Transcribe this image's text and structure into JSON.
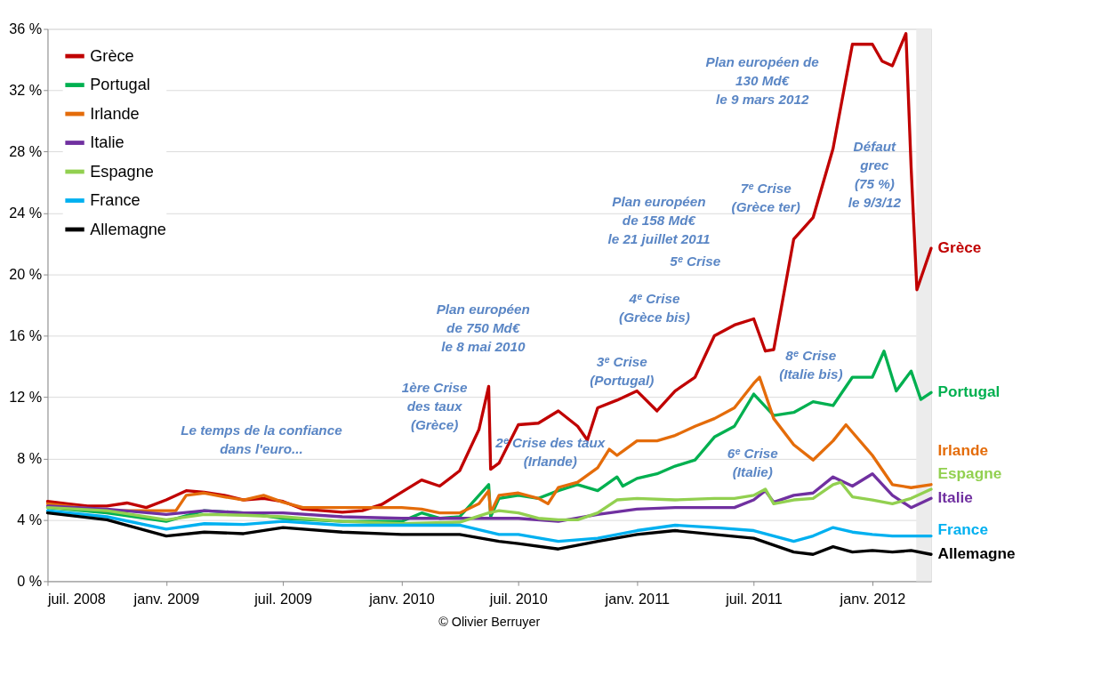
{
  "chart_data": {
    "type": "line",
    "xlim": [
      "2008-07-01",
      "2012-04-01"
    ],
    "ylim": [
      0,
      36
    ],
    "xticks": [
      {
        "value": "2008-07-01",
        "label": "juil. 2008"
      },
      {
        "value": "2009-01-01",
        "label": "janv. 2009"
      },
      {
        "value": "2009-07-01",
        "label": "juil. 2009"
      },
      {
        "value": "2010-01-01",
        "label": "janv. 2010"
      },
      {
        "value": "2010-07-01",
        "label": "juil. 2010"
      },
      {
        "value": "2011-01-01",
        "label": "janv. 2011"
      },
      {
        "value": "2011-07-01",
        "label": "juil. 2011"
      },
      {
        "value": "2012-01-01",
        "label": "janv. 2012"
      }
    ],
    "yticks": [
      {
        "value": 0,
        "label": "0 %"
      },
      {
        "value": 4,
        "label": "4 %"
      },
      {
        "value": 8,
        "label": "8 %"
      },
      {
        "value": 12,
        "label": "12 %"
      },
      {
        "value": 16,
        "label": "16 %"
      },
      {
        "value": 20,
        "label": "20 %"
      },
      {
        "value": 24,
        "label": "24 %"
      },
      {
        "value": 28,
        "label": "28 %"
      },
      {
        "value": 32,
        "label": "32 %"
      },
      {
        "value": 36,
        "label": "36 %"
      }
    ],
    "grid": "y",
    "legend": "top left",
    "line_style": "solid",
    "marker": "none",
    "series": [
      {
        "name": "Grèce",
        "color": "#c00000",
        "x": [
          "2008-07-01",
          "2008-08-01",
          "2008-09-01",
          "2008-10-01",
          "2008-11-01",
          "2008-12-01",
          "2009-01-01",
          "2009-02-01",
          "2009-03-01",
          "2009-04-01",
          "2009-05-01",
          "2009-06-01",
          "2009-07-01",
          "2009-08-01",
          "2009-09-01",
          "2009-10-01",
          "2009-11-01",
          "2009-12-01",
          "2010-01-01",
          "2010-02-01",
          "2010-03-01",
          "2010-04-01",
          "2010-05-01",
          "2010-05-16",
          "2010-05-19",
          "2010-06-01",
          "2010-07-01",
          "2010-08-01",
          "2010-09-01",
          "2010-10-01",
          "2010-10-16",
          "2010-11-01",
          "2010-12-01",
          "2011-01-01",
          "2011-02-01",
          "2011-03-01",
          "2011-04-01",
          "2011-05-01",
          "2011-06-01",
          "2011-07-01",
          "2011-07-19",
          "2011-08-01",
          "2011-09-01",
          "2011-10-01",
          "2011-11-01",
          "2011-12-01",
          "2012-01-01",
          "2012-01-16",
          "2012-02-01",
          "2012-02-22",
          "2012-03-01",
          "2012-03-10",
          "2012-04-01"
        ],
        "values": [
          5.2,
          5.05,
          4.9,
          4.9,
          5.1,
          4.8,
          5.3,
          5.9,
          5.8,
          5.6,
          5.3,
          5.4,
          5.2,
          4.7,
          4.6,
          4.5,
          4.6,
          5.0,
          5.8,
          6.6,
          6.2,
          7.2,
          9.9,
          12.7,
          7.3,
          7.7,
          10.2,
          10.3,
          11.1,
          10.1,
          9.2,
          11.3,
          11.8,
          12.4,
          11.1,
          12.4,
          13.3,
          16.0,
          16.7,
          17.1,
          15.0,
          15.1,
          22.3,
          23.7,
          28.2,
          35.0,
          35.0,
          33.9,
          33.6,
          35.7,
          27.0,
          19.0,
          21.7
        ]
      },
      {
        "name": "Portugal",
        "color": "#00b050",
        "x": [
          "2008-07-01",
          "2008-10-01",
          "2009-01-01",
          "2009-03-01",
          "2009-05-01",
          "2009-07-01",
          "2009-10-01",
          "2010-01-01",
          "2010-02-01",
          "2010-03-01",
          "2010-04-01",
          "2010-05-01",
          "2010-05-16",
          "2010-05-19",
          "2010-06-01",
          "2010-07-01",
          "2010-08-01",
          "2010-09-01",
          "2010-10-01",
          "2010-11-01",
          "2010-12-01",
          "2010-12-10",
          "2011-01-01",
          "2011-02-01",
          "2011-03-01",
          "2011-04-01",
          "2011-05-01",
          "2011-06-01",
          "2011-07-01",
          "2011-08-01",
          "2011-09-01",
          "2011-10-01",
          "2011-11-01",
          "2011-12-01",
          "2012-01-01",
          "2012-01-19",
          "2012-02-07",
          "2012-03-01",
          "2012-03-16",
          "2012-04-01"
        ],
        "values": [
          4.8,
          4.45,
          3.9,
          4.6,
          4.45,
          4.1,
          3.9,
          3.9,
          4.45,
          4.1,
          4.2,
          5.6,
          6.3,
          4.2,
          5.4,
          5.6,
          5.4,
          5.9,
          6.3,
          5.9,
          6.8,
          6.2,
          6.7,
          7.0,
          7.5,
          7.9,
          9.4,
          10.1,
          12.2,
          10.8,
          11.0,
          11.7,
          11.45,
          13.3,
          13.3,
          15.0,
          12.4,
          13.7,
          11.85,
          12.3
        ]
      },
      {
        "name": "Irlande",
        "color": "#e46c0a",
        "x": [
          "2008-07-01",
          "2008-10-01",
          "2009-01-01",
          "2009-01-16",
          "2009-02-01",
          "2009-03-01",
          "2009-04-01",
          "2009-05-01",
          "2009-06-01",
          "2009-07-01",
          "2009-08-01",
          "2009-10-01",
          "2009-12-01",
          "2010-01-01",
          "2010-02-01",
          "2010-03-01",
          "2010-04-01",
          "2010-05-01",
          "2010-05-16",
          "2010-05-19",
          "2010-06-01",
          "2010-07-01",
          "2010-08-01",
          "2010-08-16",
          "2010-09-01",
          "2010-10-01",
          "2010-11-01",
          "2010-11-19",
          "2010-12-01",
          "2011-01-01",
          "2011-02-01",
          "2011-03-01",
          "2011-04-01",
          "2011-05-01",
          "2011-06-01",
          "2011-07-01",
          "2011-07-10",
          "2011-08-01",
          "2011-09-01",
          "2011-10-01",
          "2011-11-01",
          "2011-11-21",
          "2012-01-01",
          "2012-02-01",
          "2012-03-01",
          "2012-04-01"
        ],
        "values": [
          5.05,
          4.6,
          4.6,
          4.6,
          5.6,
          5.75,
          5.5,
          5.3,
          5.6,
          5.15,
          4.8,
          4.8,
          4.8,
          4.8,
          4.7,
          4.45,
          4.45,
          5.05,
          5.9,
          4.45,
          5.6,
          5.75,
          5.4,
          5.05,
          6.1,
          6.45,
          7.4,
          8.6,
          8.2,
          9.15,
          9.15,
          9.5,
          10.1,
          10.6,
          11.3,
          12.9,
          13.3,
          10.6,
          8.9,
          7.9,
          9.15,
          10.2,
          8.2,
          6.3,
          6.1,
          6.3
        ]
      },
      {
        "name": "Italie",
        "color": "#7030a0",
        "x": [
          "2008-07-01",
          "2008-10-01",
          "2009-01-01",
          "2009-03-01",
          "2009-05-01",
          "2009-07-01",
          "2009-10-01",
          "2010-01-01",
          "2010-04-01",
          "2010-06-01",
          "2010-07-01",
          "2010-09-01",
          "2010-11-01",
          "2011-01-01",
          "2011-03-01",
          "2011-05-01",
          "2011-06-01",
          "2011-07-01",
          "2011-07-19",
          "2011-08-01",
          "2011-09-01",
          "2011-10-01",
          "2011-11-01",
          "2011-12-01",
          "2012-01-01",
          "2012-02-01",
          "2012-03-01",
          "2012-04-01"
        ],
        "values": [
          4.9,
          4.7,
          4.35,
          4.6,
          4.45,
          4.45,
          4.2,
          4.1,
          4.1,
          4.1,
          4.1,
          3.9,
          4.35,
          4.7,
          4.8,
          4.8,
          4.8,
          5.3,
          5.9,
          5.15,
          5.6,
          5.75,
          6.8,
          6.2,
          7.0,
          5.6,
          4.8,
          5.4
        ]
      },
      {
        "name": "Espagne",
        "color": "#92d050",
        "x": [
          "2008-07-01",
          "2008-10-01",
          "2009-01-01",
          "2009-03-01",
          "2009-05-01",
          "2009-07-01",
          "2009-10-01",
          "2010-01-01",
          "2010-04-01",
          "2010-05-16",
          "2010-06-01",
          "2010-07-01",
          "2010-08-01",
          "2010-09-01",
          "2010-10-01",
          "2010-11-01",
          "2010-12-01",
          "2011-01-01",
          "2011-03-01",
          "2011-05-01",
          "2011-06-01",
          "2011-07-01",
          "2011-07-19",
          "2011-08-01",
          "2011-09-01",
          "2011-10-01",
          "2011-11-01",
          "2011-11-13",
          "2011-12-01",
          "2012-01-01",
          "2012-02-01",
          "2012-03-01",
          "2012-04-01"
        ],
        "values": [
          4.8,
          4.6,
          4.0,
          4.35,
          4.3,
          4.2,
          3.9,
          3.75,
          3.85,
          4.45,
          4.6,
          4.45,
          4.1,
          4.0,
          4.0,
          4.45,
          5.3,
          5.4,
          5.3,
          5.4,
          5.4,
          5.6,
          6.0,
          5.05,
          5.3,
          5.4,
          6.3,
          6.45,
          5.5,
          5.3,
          5.05,
          5.4,
          6.0
        ]
      },
      {
        "name": "France",
        "color": "#00b0f0",
        "x": [
          "2008-07-01",
          "2008-10-01",
          "2009-01-01",
          "2009-03-01",
          "2009-05-01",
          "2009-07-01",
          "2009-10-01",
          "2010-01-01",
          "2010-04-01",
          "2010-06-01",
          "2010-07-01",
          "2010-09-01",
          "2010-11-01",
          "2011-01-01",
          "2011-03-01",
          "2011-05-01",
          "2011-07-01",
          "2011-09-01",
          "2011-10-01",
          "2011-11-01",
          "2011-12-01",
          "2012-01-01",
          "2012-02-01",
          "2012-03-01",
          "2012-04-01"
        ],
        "values": [
          4.6,
          4.2,
          3.4,
          3.75,
          3.7,
          3.9,
          3.65,
          3.65,
          3.65,
          3.05,
          3.05,
          2.6,
          2.8,
          3.3,
          3.65,
          3.5,
          3.3,
          2.6,
          2.95,
          3.5,
          3.2,
          3.05,
          2.95,
          2.95,
          2.95
        ]
      },
      {
        "name": "Allemagne",
        "color": "#000000",
        "x": [
          "2008-07-01",
          "2008-10-01",
          "2009-01-01",
          "2009-03-01",
          "2009-05-01",
          "2009-07-01",
          "2009-10-01",
          "2010-01-01",
          "2010-04-01",
          "2010-06-01",
          "2010-07-01",
          "2010-09-01",
          "2010-11-01",
          "2011-01-01",
          "2011-03-01",
          "2011-05-01",
          "2011-07-01",
          "2011-09-01",
          "2011-10-01",
          "2011-11-01",
          "2011-12-01",
          "2012-01-01",
          "2012-02-01",
          "2012-03-01",
          "2012-04-01"
        ],
        "values": [
          4.45,
          4.0,
          2.95,
          3.2,
          3.1,
          3.5,
          3.2,
          3.05,
          3.05,
          2.6,
          2.45,
          2.1,
          2.6,
          3.05,
          3.3,
          3.05,
          2.8,
          1.9,
          1.75,
          2.25,
          1.9,
          2.0,
          1.9,
          2.0,
          1.75
        ]
      }
    ],
    "bands": [
      {
        "axis": "x",
        "from": "2012-03-09",
        "to": "2012-04-01",
        "color": "#ececec"
      }
    ],
    "annotations": [
      "Le temps de la confiance\ndans l'euro...",
      "Plan européen\nde 750 Md€\nle 8 mai 2010",
      "1ère Crise\ndes taux\n(Grèce)",
      "2ᵉ Crise des taux\n(Irlande)",
      "3ᵉ Crise\n(Portugal)",
      "4ᵉ Crise\n(Grèce bis)",
      "5ᵉ Crise",
      "Plan européen\nde 158 Md€\nle 21 juillet 2011",
      "7ᵉ Crise\n(Grèce ter)",
      "8ᵉ Crise\n(Italie bis)",
      "6ᵉ Crise\n(Italie)",
      "Plan européen de\n130 Md€\nle 9 mars 2012",
      "Défaut\ngrec\n(75 %)\nle 9/3/12",
      "© Olivier Berruyer"
    ]
  }
}
